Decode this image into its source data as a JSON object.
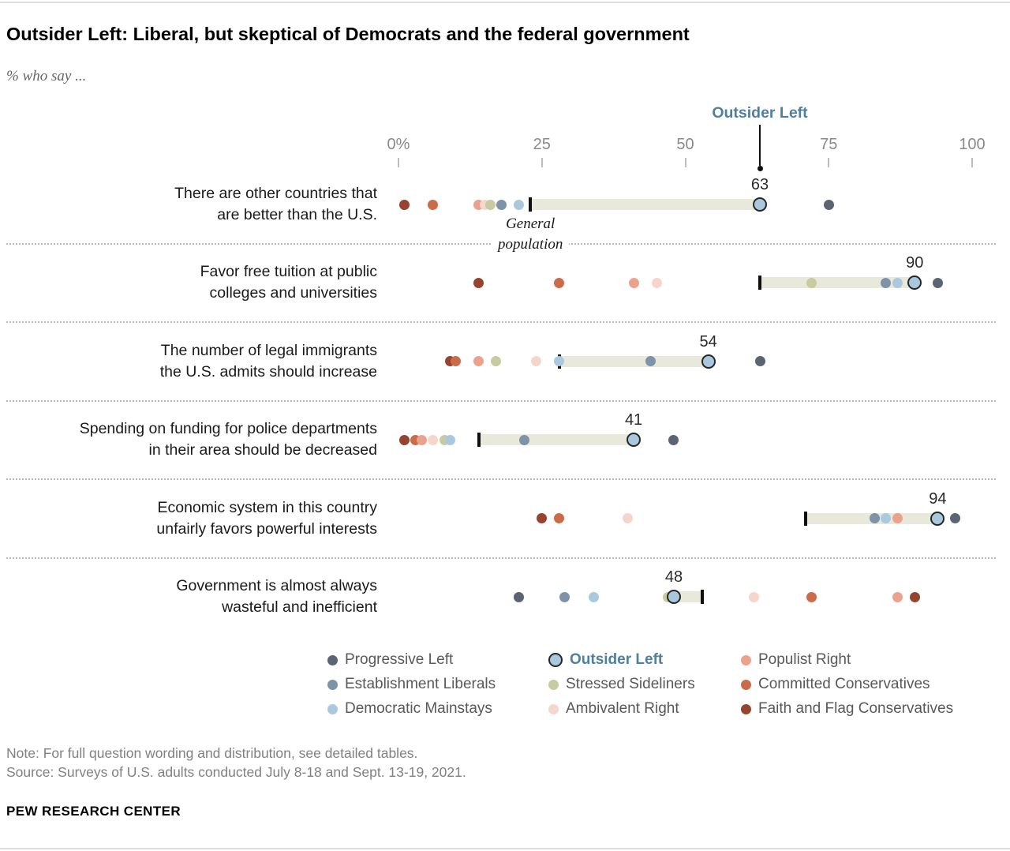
{
  "page": {
    "title": "Outsider Left: Liberal, but skeptical of Democrats and the federal government",
    "subtitle": "% who say ...",
    "note": "Note: For full question wording and distribution, see detailed tables.",
    "source": "Source: Surveys of U.S. adults conducted July 8-18 and Sept. 13-19, 2021.",
    "footer": "PEW RESEARCH CENTER"
  },
  "chart_data": {
    "type": "scatter",
    "title": "Outsider Left: Liberal, but skeptical of Democrats and the federal government",
    "xlim": [
      0,
      100
    ],
    "x_ticks": [
      {
        "label": "0%",
        "value": 0
      },
      {
        "label": "25",
        "value": 25
      },
      {
        "label": "50",
        "value": 50
      },
      {
        "label": "75",
        "value": 75
      },
      {
        "label": "100",
        "value": 100
      }
    ],
    "pointer": {
      "label": "Outsider Left",
      "value": 63
    },
    "general_population_label": [
      "General",
      "population"
    ],
    "highlight_group": "Outsider Left",
    "bar_color": "#e9e9db",
    "groups": [
      {
        "name": "Progressive Left",
        "color": "#5a6472"
      },
      {
        "name": "Establishment Liberals",
        "color": "#7e93a7"
      },
      {
        "name": "Democratic Mainstays",
        "color": "#abc9de"
      },
      {
        "name": "Outsider Left",
        "color": "#a9c8dd",
        "ring": "#262626",
        "text_color": "#4f7f9f"
      },
      {
        "name": "Stressed Sideliners",
        "color": "#c8caa0"
      },
      {
        "name": "Ambivalent Right",
        "color": "#f6d5cc"
      },
      {
        "name": "Populist Right",
        "color": "#eba28d"
      },
      {
        "name": "Committed Conservatives",
        "color": "#ca6c4a"
      },
      {
        "name": "Faith and Flag Conservatives",
        "color": "#96442f"
      }
    ],
    "rows": [
      {
        "label": [
          "There are other countries that",
          "are better than the U.S."
        ],
        "general_population": 23,
        "outsider_left_value": 63,
        "values": {
          "Faith and Flag Conservatives": 1,
          "Committed Conservatives": 6,
          "Populist Right": 14,
          "Ambivalent Right": 15,
          "Stressed Sideliners": 16,
          "Establishment Liberals": 18,
          "Democratic Mainstays": 21,
          "Outsider Left": 63,
          "Progressive Left": 75
        }
      },
      {
        "label": [
          "Favor free tuition at public",
          "colleges and universities"
        ],
        "general_population": 63,
        "outsider_left_value": 90,
        "values": {
          "Faith and Flag Conservatives": 14,
          "Committed Conservatives": 28,
          "Populist Right": 41,
          "Ambivalent Right": 45,
          "Stressed Sideliners": 72,
          "Establishment Liberals": 85,
          "Democratic Mainstays": 87,
          "Outsider Left": 90,
          "Progressive Left": 94
        }
      },
      {
        "label": [
          "The number of legal immigrants",
          "the U.S. admits should increase"
        ],
        "general_population": 28,
        "outsider_left_value": 54,
        "values": {
          "Faith and Flag Conservatives": 9,
          "Committed Conservatives": 10,
          "Populist Right": 14,
          "Stressed Sideliners": 17,
          "Ambivalent Right": 24,
          "Democratic Mainstays": 28,
          "Establishment Liberals": 44,
          "Outsider Left": 54,
          "Progressive Left": 63
        }
      },
      {
        "label": [
          "Spending on funding for police departments",
          "in their area should be decreased"
        ],
        "general_population": 14,
        "outsider_left_value": 41,
        "values": {
          "Faith and Flag Conservatives": 1,
          "Committed Conservatives": 3,
          "Populist Right": 4,
          "Ambivalent Right": 6,
          "Stressed Sideliners": 8,
          "Democratic Mainstays": 9,
          "Establishment Liberals": 22,
          "Outsider Left": 41,
          "Progressive Left": 48
        }
      },
      {
        "label": [
          "Economic system in this country",
          "unfairly favors powerful interests"
        ],
        "general_population": 71,
        "outsider_left_value": 94,
        "values": {
          "Faith and Flag Conservatives": 25,
          "Committed Conservatives": 28,
          "Ambivalent Right": 40,
          "Stressed Sideliners": 83,
          "Establishment Liberals": 83,
          "Democratic Mainstays": 85,
          "Populist Right": 87,
          "Outsider Left": 94,
          "Progressive Left": 97
        }
      },
      {
        "label": [
          "Government is almost always",
          "wasteful and inefficient"
        ],
        "general_population": 53,
        "outsider_left_value": 48,
        "values": {
          "Progressive Left": 21,
          "Establishment Liberals": 29,
          "Democratic Mainstays": 34,
          "Stressed Sideliners": 47,
          "Outsider Left": 48,
          "Ambivalent Right": 62,
          "Committed Conservatives": 72,
          "Populist Right": 87,
          "Faith and Flag Conservatives": 90
        }
      }
    ]
  },
  "legend": {
    "columns": [
      [
        "Progressive Left",
        "Establishment Liberals",
        "Democratic Mainstays"
      ],
      [
        "Outsider Left",
        "Stressed Sideliners",
        "Ambivalent Right"
      ],
      [
        "Populist Right",
        "Committed Conservatives",
        "Faith and Flag Conservatives"
      ]
    ]
  }
}
